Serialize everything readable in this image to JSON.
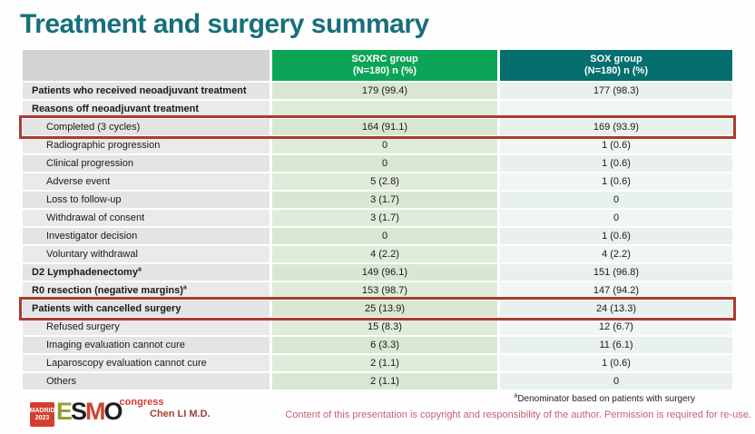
{
  "page": {
    "title": "Treatment and surgery summary"
  },
  "colors": {
    "title_teal": "#16707a",
    "soxrc_header_green": "#0ca557",
    "sox_header_teal": "#046f6d",
    "highlight_red": "#a93b31",
    "logo_red": "#d4402f",
    "copyright_pink": "#c5626f"
  },
  "table": {
    "columns": [
      {
        "line1": "SOXRC group",
        "line2": "(N=180)  n (%)"
      },
      {
        "line1": "SOX group",
        "line2": "(N=180)  n (%)"
      }
    ],
    "rows": [
      {
        "label": "Patients who received neoadjuvant treatment",
        "sup": "",
        "soxrc": "179 (99.4)",
        "sox": "177 (98.3)",
        "type": "section",
        "highlighted": false
      },
      {
        "label": "Reasons off neoadjuvant treatment",
        "sup": "",
        "soxrc": "",
        "sox": "",
        "type": "section",
        "highlighted": false
      },
      {
        "label": "Completed (3 cycles)",
        "sup": "",
        "soxrc": "164 (91.1)",
        "sox": "169 (93.9)",
        "type": "sub",
        "highlighted": true
      },
      {
        "label": "Radiographic progression",
        "sup": "",
        "soxrc": "0",
        "sox": "1 (0.6)",
        "type": "sub",
        "highlighted": false
      },
      {
        "label": "Clinical progression",
        "sup": "",
        "soxrc": "0",
        "sox": "1 (0.6)",
        "type": "sub",
        "highlighted": false
      },
      {
        "label": "Adverse event",
        "sup": "",
        "soxrc": "5 (2.8)",
        "sox": "1 (0.6)",
        "type": "sub",
        "highlighted": false
      },
      {
        "label": "Loss to follow-up",
        "sup": "",
        "soxrc": "3 (1.7)",
        "sox": "0",
        "type": "sub",
        "highlighted": false
      },
      {
        "label": "Withdrawal of consent",
        "sup": "",
        "soxrc": "3 (1.7)",
        "sox": "0",
        "type": "sub",
        "highlighted": false
      },
      {
        "label": "Investigator decision",
        "sup": "",
        "soxrc": "0",
        "sox": "1 (0.6)",
        "type": "sub",
        "highlighted": false
      },
      {
        "label": "Voluntary withdrawal",
        "sup": "",
        "soxrc": "4 (2.2)",
        "sox": "4 (2.2)",
        "type": "sub",
        "highlighted": false
      },
      {
        "label": "D2 Lymphadenectomy",
        "sup": "a",
        "soxrc": "149 (96.1)",
        "sox": "151 (96.8)",
        "type": "section",
        "highlighted": false
      },
      {
        "label": "R0 resection (negative margins)",
        "sup": "a",
        "soxrc": "153 (98.7)",
        "sox": "147 (94.2)",
        "type": "section",
        "highlighted": false
      },
      {
        "label": "Patients with cancelled surgery",
        "sup": "",
        "soxrc": "25 (13.9)",
        "sox": "24 (13.3)",
        "type": "section",
        "highlighted": true
      },
      {
        "label": "Refused surgery",
        "sup": "",
        "soxrc": "15 (8.3)",
        "sox": "12 (6.7)",
        "type": "sub",
        "highlighted": false
      },
      {
        "label": "Imaging evaluation cannot cure",
        "sup": "",
        "soxrc": "6 (3.3)",
        "sox": "11 (6.1)",
        "type": "sub",
        "highlighted": false
      },
      {
        "label": "Laparoscopy evaluation cannot cure",
        "sup": "",
        "soxrc": "2 (1.1)",
        "sox": "1 (0.6)",
        "type": "sub",
        "highlighted": false
      },
      {
        "label": "Others",
        "sup": "",
        "soxrc": "2 (1.1)",
        "sox": "0",
        "type": "sub",
        "highlighted": false
      }
    ]
  },
  "footer": {
    "logo": {
      "city": "MADRID",
      "year": "2023",
      "letters": [
        "E",
        "S",
        "M",
        "O"
      ],
      "congress": "congress"
    },
    "author": "Chen LI M.D.",
    "footnote_sup": "a",
    "footnote_text": "Denominator based on patients with surgery",
    "copyright": "Content of this presentation is copyright and responsibility of the author.  Permission is required for re-use."
  }
}
